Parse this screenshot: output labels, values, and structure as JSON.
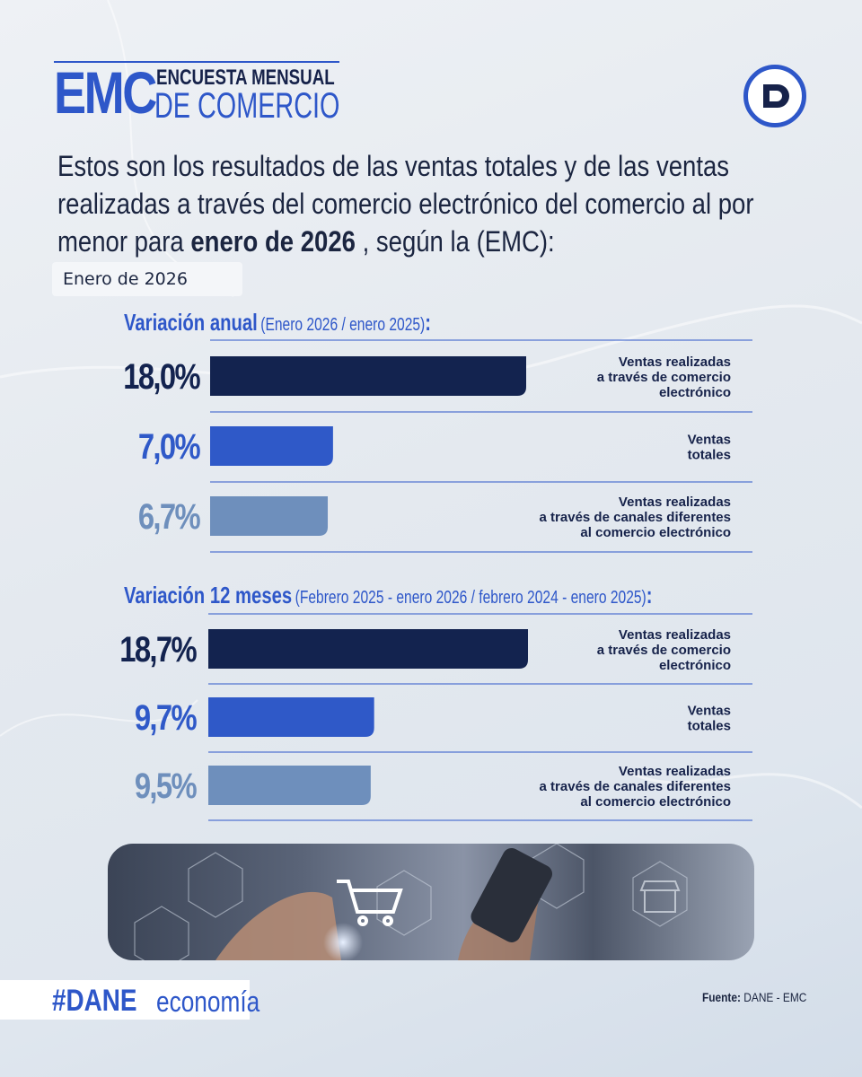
{
  "header": {
    "brand_short": "EMC",
    "brand_line1": "ENCUESTA MENSUAL",
    "brand_line2": "DE COMERCIO",
    "logo_letter": "D"
  },
  "intro": {
    "text_before": "Estos son los resultados de las ventas totales y de las ventas realizadas a través del comercio electrónico del comercio al por menor para",
    "text_bold": "enero de 2026",
    "text_after": ", según la (EMC):"
  },
  "period_label": "Enero de 2026",
  "colors": {
    "accent": "#2e57c9",
    "dark_navy": "#13234f",
    "mid_blue": "#2f59c8",
    "light_blue": "#6e8fbc"
  },
  "chart_data": [
    {
      "type": "bar",
      "title": "Variación anual",
      "subtitle": "(Enero 2026 / enero 2025)",
      "unit": "%",
      "xlim": [
        0,
        18.0
      ],
      "series": [
        {
          "label": "Ventas realizadas a través de comercio electrónico",
          "label_lines": [
            "Ventas realizadas",
            "a través de comercio",
            "electrónico"
          ],
          "value": 18.0,
          "value_text": "18,0%",
          "color": "#13234f"
        },
        {
          "label": "Ventas totales",
          "label_lines": [
            "Ventas",
            "totales"
          ],
          "value": 7.0,
          "value_text": "7,0%",
          "color": "#2f59c8"
        },
        {
          "label": "Ventas realizadas a través de canales diferentes al comercio electrónico",
          "label_lines": [
            "Ventas realizadas",
            "a través de canales diferentes",
            "al comercio electrónico"
          ],
          "value": 6.7,
          "value_text": "6,7%",
          "color": "#6e8fbc"
        }
      ]
    },
    {
      "type": "bar",
      "title": "Variación 12 meses",
      "subtitle": "(Febrero 2025 - enero 2026 / febrero 2024 - enero 2025)",
      "unit": "%",
      "xlim": [
        0,
        18.7
      ],
      "series": [
        {
          "label": "Ventas realizadas a través de comercio electrónico",
          "label_lines": [
            "Ventas realizadas",
            "a través de comercio",
            "electrónico"
          ],
          "value": 18.7,
          "value_text": "18,7%",
          "color": "#13234f"
        },
        {
          "label": "Ventas totales",
          "label_lines": [
            "Ventas",
            "totales"
          ],
          "value": 9.7,
          "value_text": "9,7%",
          "color": "#2f59c8"
        },
        {
          "label": "Ventas realizadas a través de canales diferentes al comercio electrónico",
          "label_lines": [
            "Ventas realizadas",
            "a través de canales diferentes",
            "al comercio electrónico"
          ],
          "value": 9.5,
          "value_text": "9,5%",
          "color": "#6e8fbc"
        }
      ]
    }
  ],
  "footer": {
    "hashtag_bold": "#DANE",
    "hashtag_regular": "economía",
    "source_label": "Fuente:",
    "source_value": "DANE - EMC"
  }
}
